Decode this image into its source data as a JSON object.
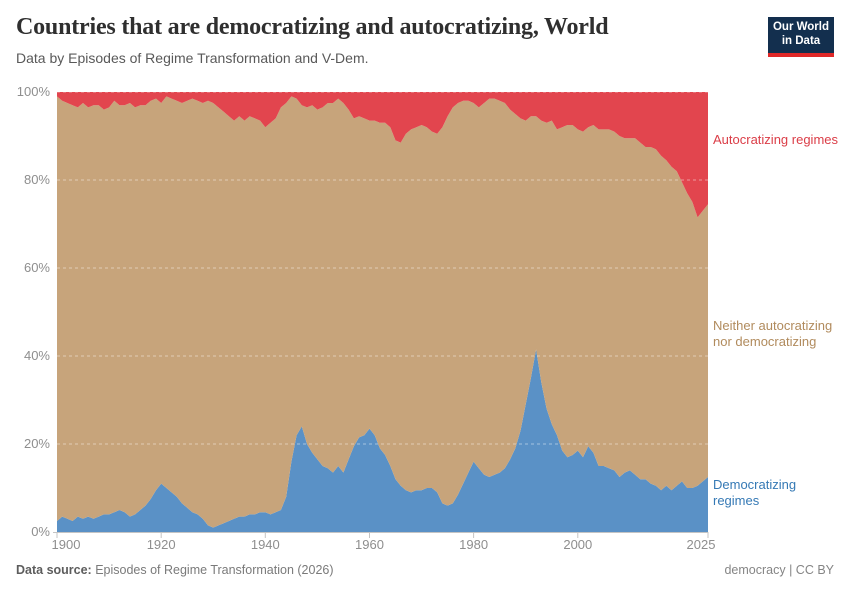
{
  "header": {
    "title": "Countries that are democratizing and autocratizing, World",
    "subtitle": "Data by Episodes of Regime Transformation and V-Dem."
  },
  "logo": {
    "line1": "Our World",
    "line2": "in Data",
    "bg": "#132f4e",
    "accent": "#e02828"
  },
  "chart_data": {
    "type": "area",
    "stacked": true,
    "unit": "%",
    "x_start": 1900,
    "x_end": 2025,
    "x_step": 1,
    "x_ticks": [
      1900,
      1920,
      1940,
      1960,
      1980,
      2000,
      2025
    ],
    "y_ticks": [
      "0%",
      "20%",
      "40%",
      "60%",
      "80%",
      "100%"
    ],
    "ylim": [
      0,
      100
    ],
    "grid": "dashed horizontal",
    "legend_position": "right",
    "series": [
      {
        "id": "democratizing",
        "name": "Democratizing regimes",
        "color": "#5a91c6",
        "label_color": "#3579b5",
        "values": [
          2.5,
          3.5,
          3,
          2.5,
          3.5,
          3,
          3.5,
          3,
          3.5,
          4,
          4,
          4.5,
          5,
          4.5,
          3.5,
          4,
          5,
          6,
          7.5,
          9.5,
          11,
          10,
          9,
          8,
          6.5,
          5.5,
          4.5,
          4,
          3,
          1.5,
          1,
          1.5,
          2,
          2.5,
          3,
          3.5,
          3.5,
          4,
          4,
          4.5,
          4.5,
          4,
          4.5,
          5,
          8,
          16,
          22,
          24,
          20,
          18,
          16.5,
          15,
          14.5,
          13.5,
          15,
          13.5,
          16.5,
          19.5,
          21.5,
          22,
          23.5,
          22,
          19,
          17.5,
          15,
          12,
          10.5,
          9.5,
          9,
          9.5,
          9.5,
          10,
          10,
          9,
          6.5,
          6,
          6.5,
          8.5,
          11,
          13.5,
          16,
          14.5,
          13,
          12.5,
          13,
          13.5,
          14.5,
          16.5,
          19,
          23,
          29,
          35,
          41.5,
          34,
          28,
          24.5,
          22,
          18.5,
          17,
          17.5,
          18.5,
          17,
          19.5,
          18,
          15,
          15,
          14.5,
          14,
          12.5,
          13.5,
          14,
          13,
          12,
          12,
          11,
          10.5,
          9.5,
          10.5,
          9.5,
          10.5,
          11.5,
          10,
          10,
          10.5,
          11.5,
          12.5
        ]
      },
      {
        "id": "neither",
        "name": "Neither autocratizing nor democratizing",
        "color": "#c7a47b",
        "label_color": "#b18b5d",
        "values": [
          96.5,
          94.5,
          94.5,
          94.5,
          93,
          94.5,
          93,
          94,
          93.5,
          92,
          92.5,
          93.5,
          92,
          92.5,
          94,
          92.5,
          92,
          91,
          90.5,
          89,
          86.5,
          89,
          89.5,
          90,
          91,
          92.5,
          94,
          94,
          94.5,
          96.5,
          96.5,
          95,
          93.5,
          92,
          90.5,
          91,
          90,
          90.5,
          90,
          89,
          87.5,
          89,
          89.5,
          91.5,
          89.5,
          83,
          76.5,
          73,
          76.5,
          79,
          79.5,
          81.5,
          83,
          84,
          83.5,
          84,
          79.5,
          74.5,
          73,
          72,
          70,
          71.5,
          74,
          75.5,
          77,
          77,
          78,
          81,
          82.5,
          82.5,
          83,
          82,
          81,
          81.5,
          85.5,
          88.5,
          90,
          89,
          87,
          84.5,
          81.5,
          82,
          84.5,
          86,
          85.5,
          84.5,
          83,
          79.5,
          76,
          71,
          64.5,
          59.5,
          53,
          59.5,
          65,
          69,
          69.5,
          73.5,
          75.5,
          75,
          73,
          74,
          72.5,
          74.5,
          76.5,
          76.5,
          77,
          77,
          77.5,
          76,
          75.5,
          76.5,
          76.5,
          75.5,
          76.5,
          76.5,
          76,
          74,
          73.5,
          71.5,
          68,
          67,
          65,
          61,
          61.5,
          62
        ]
      },
      {
        "id": "autocratizing",
        "name": "Autocratizing regimes",
        "color": "#e2454e",
        "label_color": "#db3d47",
        "values": [
          1,
          2,
          2.5,
          3,
          3.5,
          2.5,
          3.5,
          3,
          3,
          4,
          3.5,
          2,
          3,
          3,
          2.5,
          3.5,
          3,
          3,
          2,
          1.5,
          2.5,
          1,
          1.5,
          2,
          2.5,
          2,
          1.5,
          2,
          2.5,
          2,
          2.5,
          3.5,
          4.5,
          5.5,
          6.5,
          5.5,
          6.5,
          5.5,
          6,
          6.5,
          8,
          7,
          6,
          3.5,
          2.5,
          1,
          1.5,
          3,
          3.5,
          3,
          4,
          3.5,
          2.5,
          2.5,
          1.5,
          2.5,
          4,
          6,
          5.5,
          6,
          6.5,
          6.5,
          7,
          7,
          8,
          11,
          11.5,
          9.5,
          8.5,
          8,
          7.5,
          8,
          9,
          9.5,
          8,
          5.5,
          3.5,
          2.5,
          2,
          2,
          2.5,
          3.5,
          2.5,
          1.5,
          1.5,
          2,
          2.5,
          4,
          5,
          6,
          6.5,
          5.5,
          5.5,
          6.5,
          7,
          6.5,
          8.5,
          8,
          7.5,
          7.5,
          8.5,
          9,
          8,
          7.5,
          8.5,
          8.5,
          8.5,
          9,
          10,
          10.5,
          10.5,
          10.5,
          11.5,
          12.5,
          12.5,
          13,
          14.5,
          15.5,
          17,
          18,
          20.5,
          23,
          25,
          28.5,
          27,
          25.5
        ]
      }
    ]
  },
  "footer": {
    "source_label": "Data source:",
    "source_text": " Episodes of Regime Transformation (2026)",
    "right_text": "democracy | CC BY"
  }
}
